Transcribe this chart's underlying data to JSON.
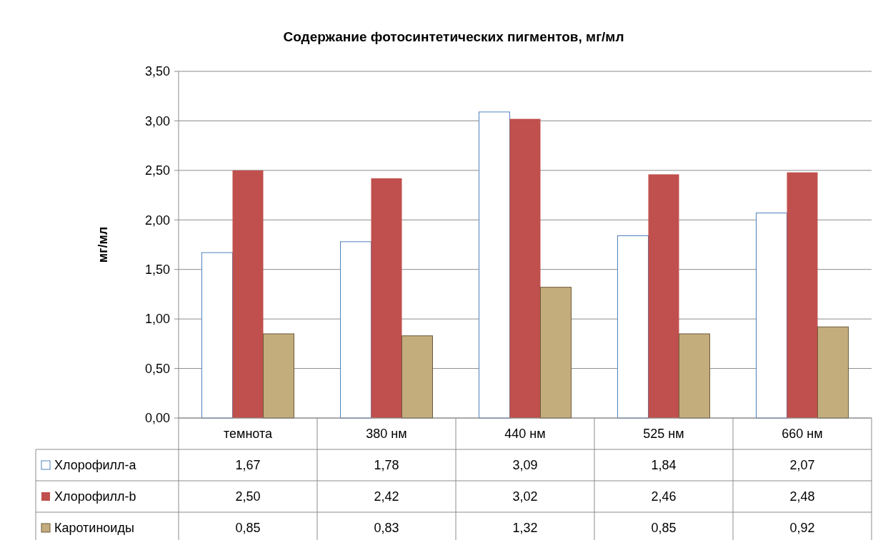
{
  "chart_data": {
    "type": "bar",
    "title": "Содержание фотосинтетических пигментов, мг/мл",
    "ylabel": "мг/мл",
    "categories": [
      "темнота",
      "380 нм",
      "440 нм",
      "525 нм",
      "660 нм"
    ],
    "series": [
      {
        "name": "Хлорофилл-a",
        "color": "#ffffff",
        "values": [
          1.67,
          1.78,
          3.09,
          1.84,
          2.07
        ],
        "value_labels": [
          "1,67",
          "1,78",
          "3,09",
          "1,84",
          "2,07"
        ]
      },
      {
        "name": "Хлорофилл-b",
        "color": "#c0504d",
        "values": [
          2.5,
          2.42,
          3.02,
          2.46,
          2.48
        ],
        "value_labels": [
          "2,50",
          "2,42",
          "3,02",
          "2,46",
          "2,48"
        ]
      },
      {
        "name": "Каротиноиды",
        "color": "#c4ad7c",
        "values": [
          0.85,
          0.83,
          1.32,
          0.85,
          0.92
        ],
        "value_labels": [
          "0,85",
          "0,83",
          "1,32",
          "0,85",
          "0,92"
        ]
      }
    ],
    "ylim": [
      0,
      3.5
    ],
    "yticks": [
      {
        "value": 0,
        "label": "0,00"
      },
      {
        "value": 0.5,
        "label": "0,50"
      },
      {
        "value": 1,
        "label": "1,00"
      },
      {
        "value": 1.5,
        "label": "1,50"
      },
      {
        "value": 2,
        "label": "2,00"
      },
      {
        "value": 2.5,
        "label": "2,50"
      },
      {
        "value": 3,
        "label": "3,00"
      },
      {
        "value": 3.5,
        "label": "3,50"
      }
    ],
    "grid": "y",
    "legend": "bottom left"
  }
}
